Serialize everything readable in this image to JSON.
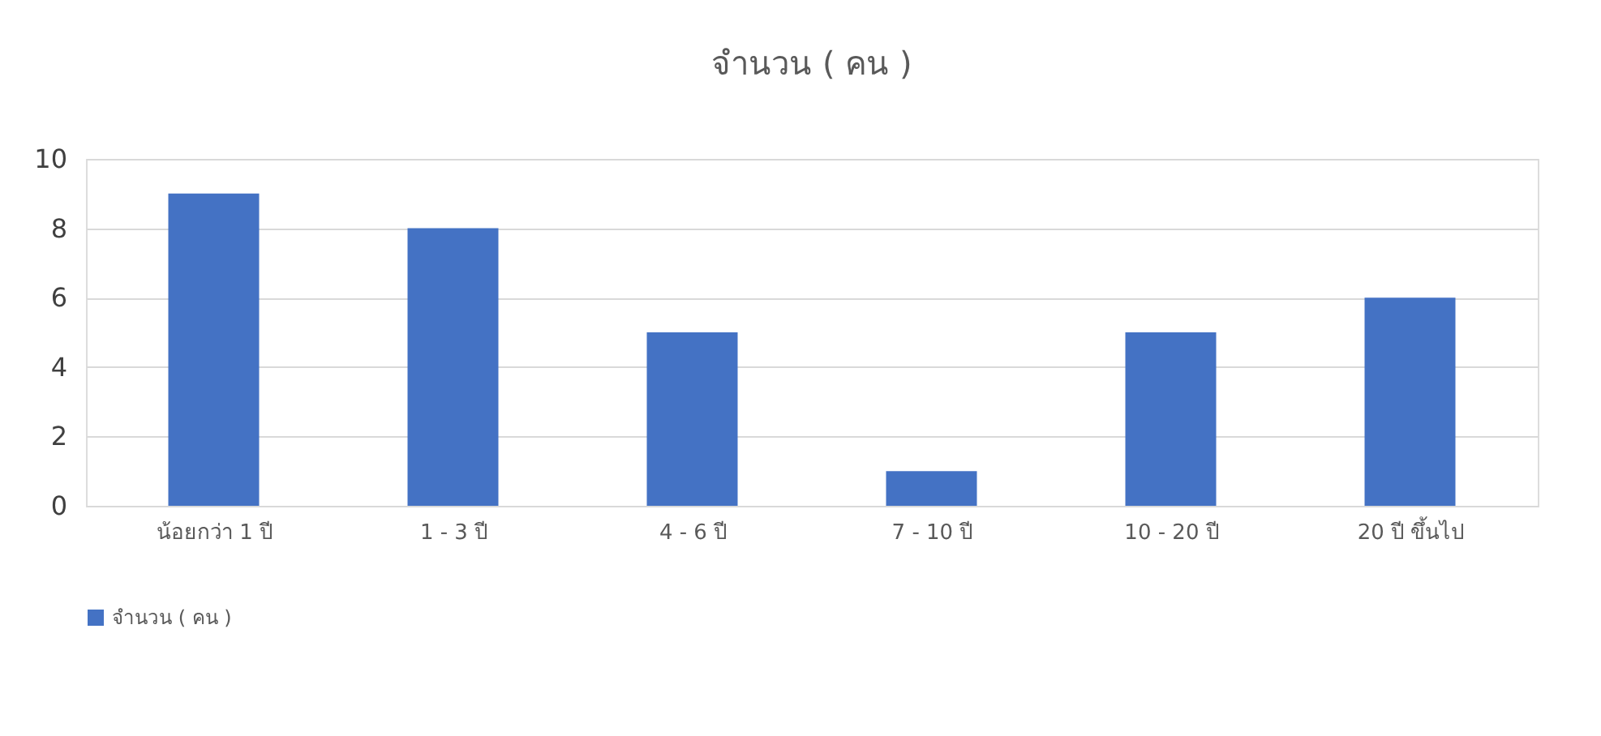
{
  "chart_data": {
    "type": "bar",
    "title": "จำนวน ( คน )",
    "categories": [
      "น้อยกว่า 1 ปี",
      "1 - 3 ปี",
      "4 - 6 ปี",
      "7 - 10 ปี",
      "10 - 20 ปี",
      "20 ปี ขึ้นไป"
    ],
    "series": [
      {
        "name": "จำนวน ( คน )",
        "color": "#4472c4",
        "values": [
          9,
          8,
          5,
          1,
          5,
          6
        ]
      }
    ],
    "ylim": [
      0,
      10
    ],
    "yticks": [
      0,
      2,
      4,
      6,
      8,
      10
    ],
    "grid": "y",
    "legend": "bottom"
  }
}
